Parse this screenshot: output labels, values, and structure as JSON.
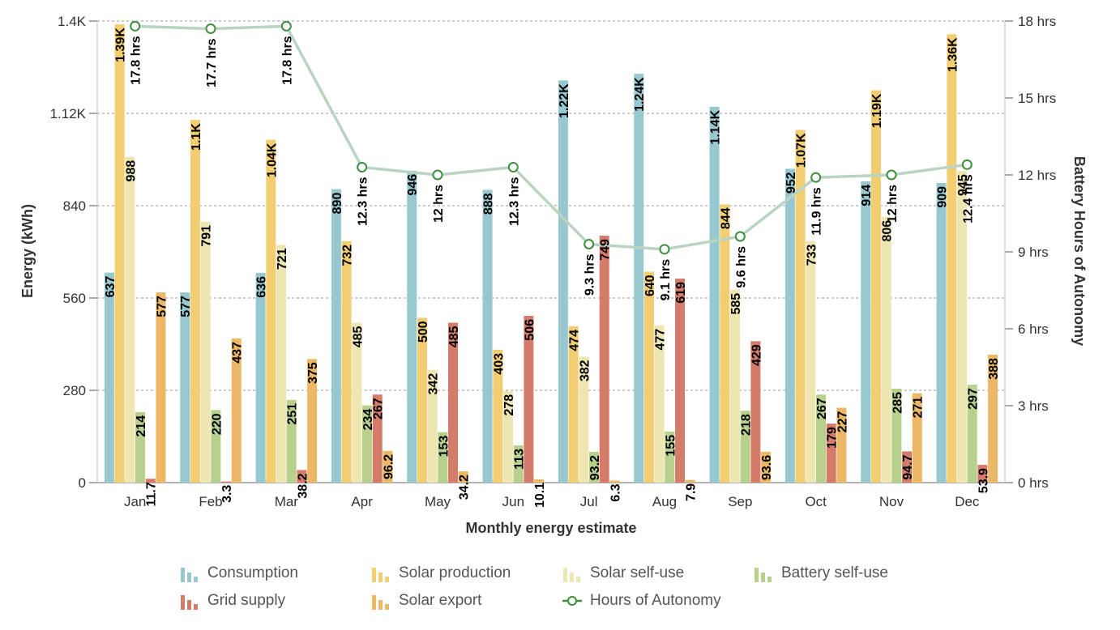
{
  "chart_data": {
    "type": "bar",
    "xlabel": "Monthly energy estimate",
    "ylabel": "Energy (kWh)",
    "y2label": "Battery Hours of Autonomy",
    "categories": [
      "Jan",
      "Feb",
      "Mar",
      "Apr",
      "May",
      "Jun",
      "Jul",
      "Aug",
      "Sep",
      "Oct",
      "Nov",
      "Dec"
    ],
    "ylim": [
      0,
      1400
    ],
    "yticks": [
      0,
      280,
      560,
      840,
      1120,
      1400
    ],
    "yticklabels": [
      "0",
      "280",
      "560",
      "840",
      "1.12K",
      "1.4K"
    ],
    "y2lim": [
      0,
      18
    ],
    "y2ticks": [
      0,
      3,
      6,
      9,
      12,
      15,
      18
    ],
    "y2ticklabels": [
      "0 hrs",
      "3 hrs",
      "6 hrs",
      "9 hrs",
      "12 hrs",
      "15 hrs",
      "18 hrs"
    ],
    "grid": true,
    "legend_position": "bottom",
    "series": [
      {
        "name": "Consumption",
        "color": "#98c8cf",
        "values": [
          637,
          577,
          636,
          890,
          946,
          888,
          1220,
          1240,
          1140,
          952,
          914,
          909
        ],
        "labels": [
          "637",
          "577",
          "636",
          "890",
          "946",
          "888",
          "1.22K",
          "1.24K",
          "1.14K",
          "952",
          "914",
          "909"
        ]
      },
      {
        "name": "Solar production",
        "color": "#f2cd71",
        "values": [
          1390,
          1100,
          1040,
          732,
          500,
          403,
          474,
          640,
          844,
          1070,
          1190,
          1360
        ],
        "labels": [
          "1.39K",
          "1.1K",
          "1.04K",
          "732",
          "500",
          "403",
          "474",
          "640",
          "844",
          "1.07K",
          "1.19K",
          "1.36K"
        ]
      },
      {
        "name": "Solar self-use",
        "color": "#ede6b0",
        "values": [
          988,
          791,
          721,
          485,
          342,
          278,
          382,
          477,
          585,
          733,
          806,
          945
        ],
        "labels": [
          "988",
          "791",
          "721",
          "485",
          "342",
          "278",
          "382",
          "477",
          "585",
          "733",
          "806",
          "945"
        ]
      },
      {
        "name": "Battery self-use",
        "color": "#b7d08c",
        "values": [
          214,
          220,
          251,
          234,
          153,
          113,
          93.2,
          155,
          218,
          267,
          285,
          297
        ],
        "labels": [
          "214",
          "220",
          "251",
          "234",
          "153",
          "113",
          "93.2",
          "155",
          "218",
          "267",
          "285",
          "297"
        ]
      },
      {
        "name": "Grid supply",
        "color": "#d47b6a",
        "values": [
          11.7,
          3.3,
          38.2,
          267,
          485,
          506,
          749,
          619,
          429,
          179,
          94.7,
          53.9
        ],
        "labels": [
          "11.7",
          "3.3",
          "38.2",
          "267",
          "485",
          "506",
          "749",
          "619",
          "429",
          "179",
          "94.7",
          "53.9"
        ]
      },
      {
        "name": "Solar export",
        "color": "#edb866",
        "values": [
          577,
          437,
          375,
          96.2,
          34.2,
          10.1,
          6.3,
          7.9,
          93.6,
          227,
          271,
          388
        ],
        "labels": [
          "577",
          "437",
          "375",
          "96.2",
          "34.2",
          "10.1",
          "6.3",
          "7.9",
          "93.6",
          "227",
          "271",
          "388"
        ]
      }
    ],
    "line_series": {
      "name": "Hours of Autonomy",
      "color": "#b9d4c2",
      "marker_color": "#3d8f3d",
      "axis": "right",
      "values": [
        17.8,
        17.7,
        17.8,
        12.3,
        12,
        12.3,
        9.3,
        9.1,
        9.6,
        11.9,
        12,
        12.4
      ],
      "labels": [
        "17.8 hrs",
        "17.7 hrs",
        "17.8 hrs",
        "12.3 hrs",
        "12 hrs",
        "12.3 hrs",
        "9.3 hrs",
        "9.1 hrs",
        "9.6 hrs",
        "11.9 hrs",
        "12 hrs",
        "12.4 hrs"
      ]
    }
  },
  "legend": [
    {
      "label": "Consumption",
      "icon": "bar-icon",
      "color": "#98c8cf"
    },
    {
      "label": "Solar production",
      "icon": "bar-icon",
      "color": "#f2cd71"
    },
    {
      "label": "Solar self-use",
      "icon": "bar-icon",
      "color": "#ede6b0"
    },
    {
      "label": "Battery self-use",
      "icon": "bar-icon",
      "color": "#b7d08c"
    },
    {
      "label": "Grid supply",
      "icon": "bar-icon",
      "color": "#d47b6a"
    },
    {
      "label": "Solar export",
      "icon": "bar-icon",
      "color": "#edb866"
    },
    {
      "label": "Hours of Autonomy",
      "icon": "line-marker-icon",
      "color": "#3d8f3d"
    }
  ]
}
